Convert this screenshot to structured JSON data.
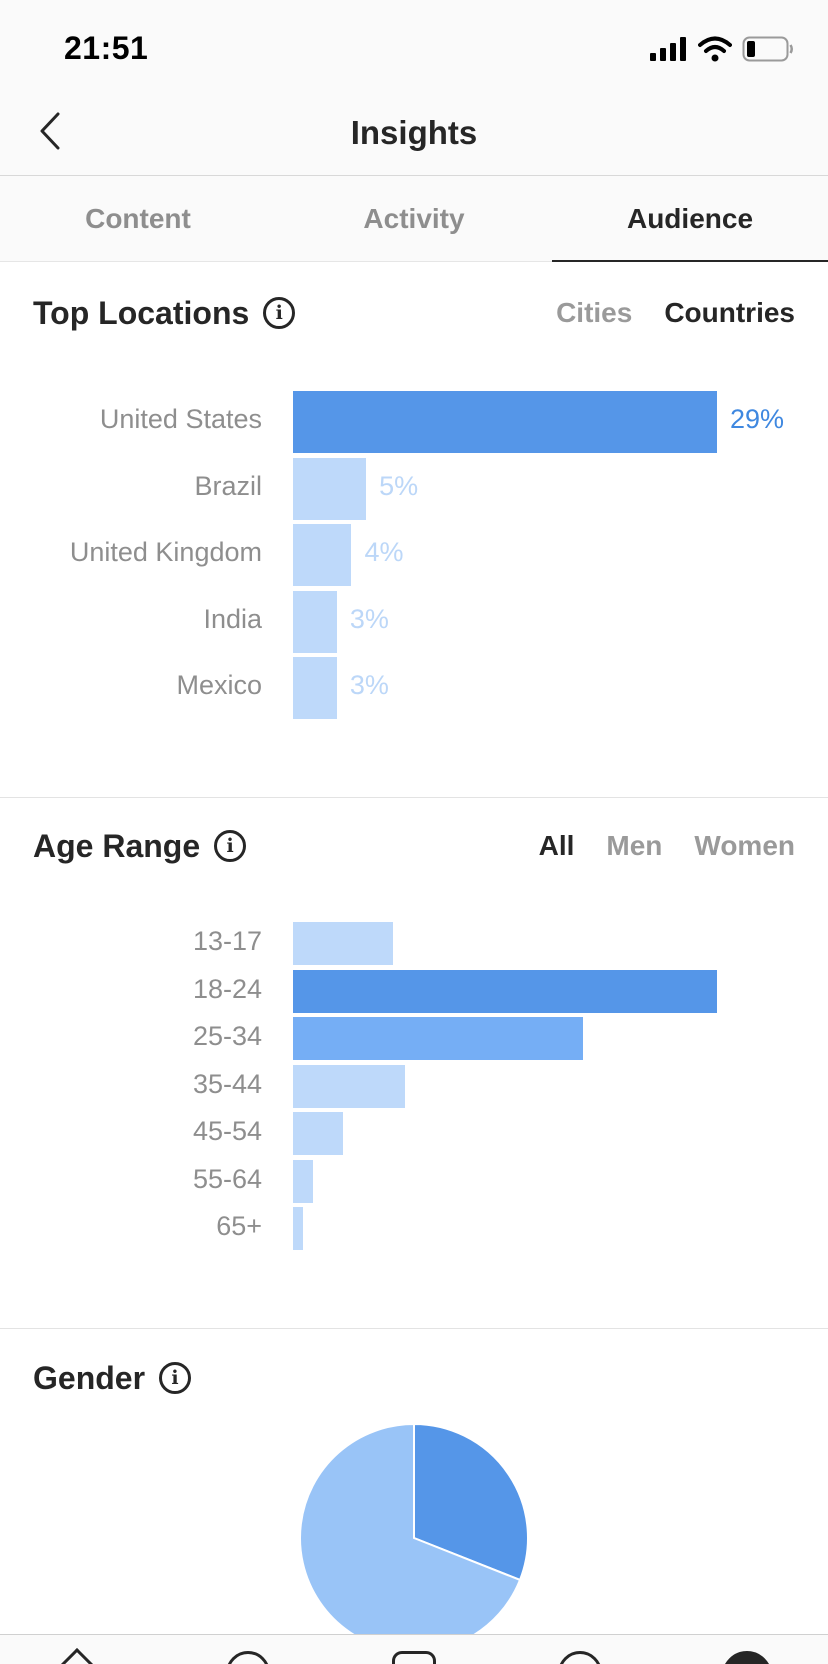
{
  "status_bar": {
    "time": "21:51"
  },
  "header": {
    "title": "Insights"
  },
  "tabs": [
    {
      "label": "Content",
      "active": false
    },
    {
      "label": "Activity",
      "active": false
    },
    {
      "label": "Audience",
      "active": true
    }
  ],
  "top_locations": {
    "title": "Top Locations",
    "filters": [
      {
        "label": "Cities",
        "active": false
      },
      {
        "label": "Countries",
        "active": true
      }
    ]
  },
  "age_range": {
    "title": "Age Range",
    "filters": [
      {
        "label": "All",
        "active": true
      },
      {
        "label": "Men",
        "active": false
      },
      {
        "label": "Women",
        "active": false
      }
    ]
  },
  "gender": {
    "title": "Gender"
  },
  "colors": {
    "bar_dark": "#5596e8",
    "bar_mid": "#75aef5",
    "bar_light": "#bed9fa",
    "pie_dark": "#5596e8",
    "pie_light": "#99c4f7",
    "value_dark": "#3f88e0",
    "value_light": "#bcd7f8"
  },
  "chart_data": [
    {
      "type": "bar",
      "title": "Top Locations",
      "categories": [
        "United States",
        "Brazil",
        "United Kingdom",
        "India",
        "Mexico"
      ],
      "values": [
        29,
        5,
        4,
        3,
        3
      ],
      "value_labels": [
        "29%",
        "5%",
        "4%",
        "3%",
        "3%"
      ],
      "orientation": "horizontal",
      "grid": false
    },
    {
      "type": "bar",
      "title": "Age Range",
      "categories": [
        "13-17",
        "18-24",
        "25-34",
        "35-44",
        "45-54",
        "55-64",
        "65+"
      ],
      "values": [
        9,
        38,
        26,
        10,
        4.5,
        1.8,
        0.9
      ],
      "orientation": "horizontal",
      "grid": false
    },
    {
      "type": "pie",
      "title": "Gender",
      "values": [
        31,
        69
      ]
    }
  ]
}
